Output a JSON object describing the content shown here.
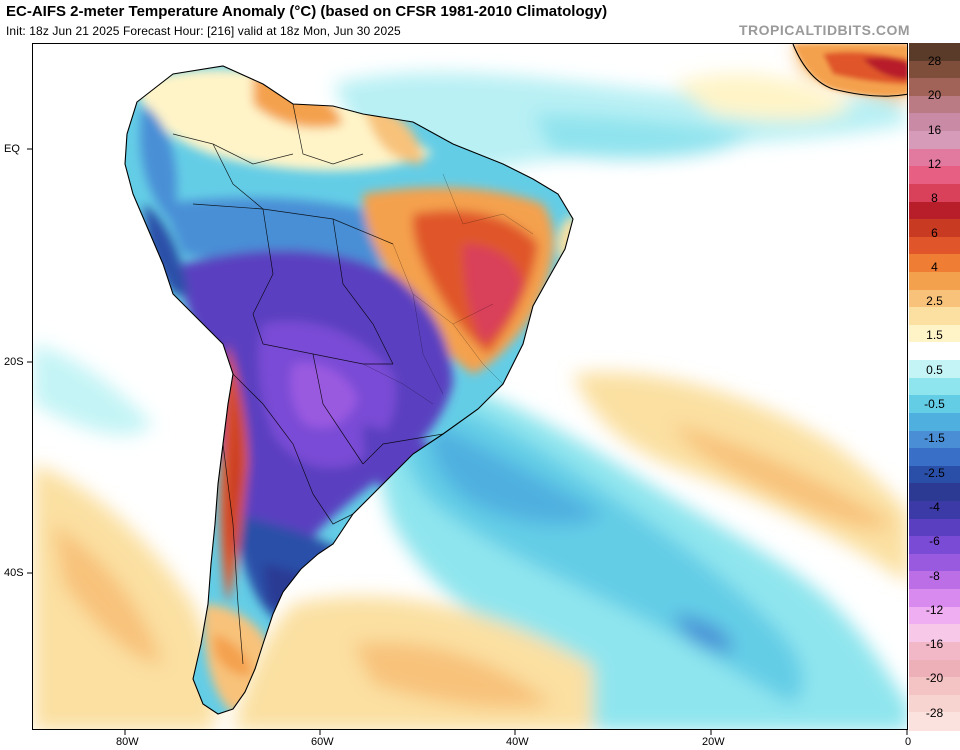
{
  "header": {
    "title": "EC-AIFS 2-meter Temperature Anomaly (°C) (based on CFSR 1981-2010 Climatology)",
    "subtitle": "Init: 18z Jun 21 2025   Forecast Hour: [216]   valid at 18z Mon, Jun 30 2025",
    "brand": "TROPICALTIDBITS.COM"
  },
  "axes": {
    "lat_labels": [
      "EQ",
      "20S",
      "40S"
    ],
    "lon_labels": [
      "80W",
      "60W",
      "40W",
      "20W",
      "0"
    ]
  },
  "colorbar": {
    "labels": [
      "28",
      "20",
      "16",
      "12",
      "8",
      "6",
      "4",
      "2.5",
      "1.5",
      "0.5",
      "-0.5",
      "-1.5",
      "-2.5",
      "-4",
      "-6",
      "-8",
      "-12",
      "-16",
      "-20",
      "-28"
    ],
    "colors": [
      "#5a3b2a",
      "#7e4e3a",
      "#a16258",
      "#bb7b85",
      "#c98aa6",
      "#d59bb8",
      "#e27aa0",
      "#e85f84",
      "#d9405a",
      "#b81e2a",
      "#c83a22",
      "#e0562a",
      "#ef7d34",
      "#f4a14e",
      "#f8c27a",
      "#fbe0a2",
      "#fff4c8",
      "#ffffff",
      "#c4f4f6",
      "#8fe5ee",
      "#64cde6",
      "#4fb0e0",
      "#4a8fd6",
      "#3a6fc8",
      "#2a4fa8",
      "#2c3a94",
      "#3c3aa6",
      "#5a40c0",
      "#7a4cd6",
      "#9a5ae0",
      "#bb6ee6",
      "#d98aee",
      "#efaef2",
      "#f7c8e8",
      "#f2b8c8",
      "#eeb0b8",
      "#f4c4c4",
      "#f8d4d0",
      "#fbe2de"
    ]
  }
}
